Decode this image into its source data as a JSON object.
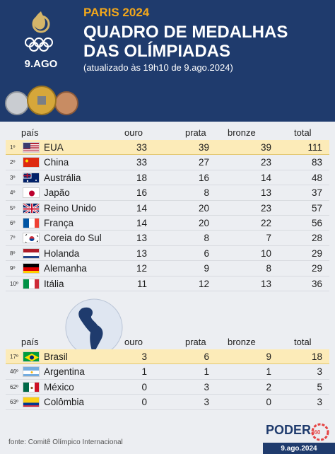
{
  "header": {
    "kicker": "PARIS 2024",
    "title": "QUADRO DE MEDALHAS DAS OLÍMPIADAS",
    "subtitle": "(atualizado às 19h10 de 9.ago.2024)",
    "date_badge": "9.AGO"
  },
  "columns": {
    "country": "país",
    "gold": "ouro",
    "silver": "prata",
    "bronze": "bronze",
    "total": "total"
  },
  "top10": [
    {
      "rank": "1º",
      "flag": "usa-flag-icon",
      "country": "EUA",
      "gold": "33",
      "silver": "39",
      "bronze": "39",
      "total": "111"
    },
    {
      "rank": "2º",
      "flag": "china-flag-icon",
      "country": "China",
      "gold": "33",
      "silver": "27",
      "bronze": "23",
      "total": "83"
    },
    {
      "rank": "3º",
      "flag": "australia-flag-icon",
      "country": "Austrália",
      "gold": "18",
      "silver": "16",
      "bronze": "14",
      "total": "48"
    },
    {
      "rank": "4º",
      "flag": "japan-flag-icon",
      "country": "Japão",
      "gold": "16",
      "silver": "8",
      "bronze": "13",
      "total": "37"
    },
    {
      "rank": "5º",
      "flag": "uk-flag-icon",
      "country": "Reino Unido",
      "gold": "14",
      "silver": "20",
      "bronze": "23",
      "total": "57"
    },
    {
      "rank": "6º",
      "flag": "france-flag-icon",
      "country": "França",
      "gold": "14",
      "silver": "20",
      "bronze": "22",
      "total": "56"
    },
    {
      "rank": "7º",
      "flag": "south-korea-flag-icon",
      "country": "Coreia do Sul",
      "gold": "13",
      "silver": "8",
      "bronze": "7",
      "total": "28"
    },
    {
      "rank": "8º",
      "flag": "netherlands-flag-icon",
      "country": "Holanda",
      "gold": "13",
      "silver": "6",
      "bronze": "10",
      "total": "29"
    },
    {
      "rank": "9º",
      "flag": "germany-flag-icon",
      "country": "Alemanha",
      "gold": "12",
      "silver": "9",
      "bronze": "8",
      "total": "29"
    },
    {
      "rank": "10º",
      "flag": "italy-flag-icon",
      "country": "Itália",
      "gold": "11",
      "silver": "12",
      "bronze": "13",
      "total": "36"
    }
  ],
  "latam": [
    {
      "rank": "17º",
      "flag": "brazil-flag-icon",
      "country": "Brasil",
      "gold": "3",
      "silver": "6",
      "bronze": "9",
      "total": "18"
    },
    {
      "rank": "46º",
      "flag": "argentina-flag-icon",
      "country": "Argentina",
      "gold": "1",
      "silver": "1",
      "bronze": "1",
      "total": "3"
    },
    {
      "rank": "62º",
      "flag": "mexico-flag-icon",
      "country": "México",
      "gold": "0",
      "silver": "3",
      "bronze": "2",
      "total": "5"
    },
    {
      "rank": "63º",
      "flag": "colombia-flag-icon",
      "country": "Colômbia",
      "gold": "0",
      "silver": "3",
      "bronze": "0",
      "total": "3"
    }
  ],
  "footer": {
    "source": "fonte: Comitê Olímpico Internacional",
    "brand": "PODER",
    "brand_sub": "360",
    "date": "9.ago.2024"
  },
  "colors": {
    "navy": "#1f3b6d",
    "highlight": "#fcebb8",
    "orange": "#f2a71b"
  }
}
